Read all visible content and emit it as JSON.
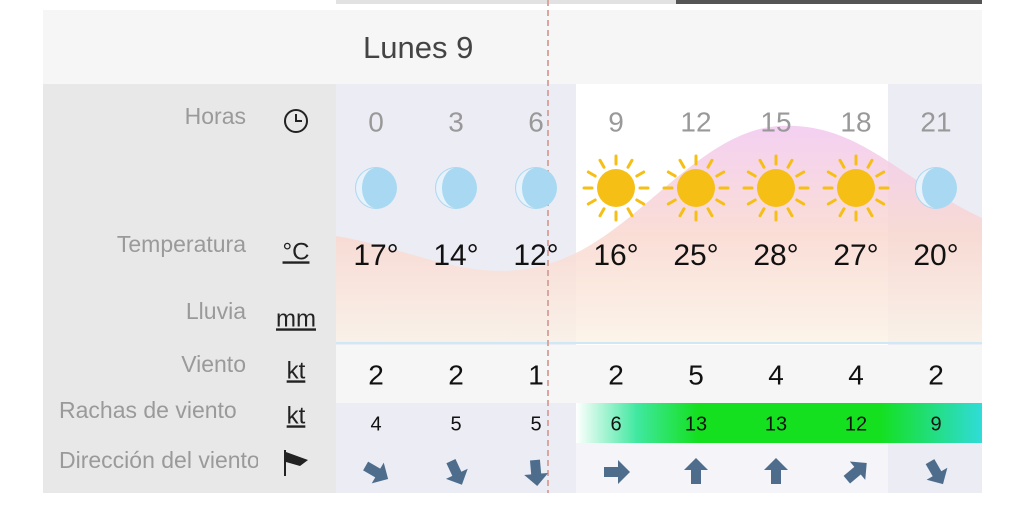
{
  "day_title": "Lunes 9",
  "rows": {
    "hours": {
      "label": "Horas",
      "values": [
        "0",
        "3",
        "6",
        "9",
        "12",
        "15",
        "18",
        "21"
      ]
    },
    "temperature": {
      "label": "Temperatura",
      "unit": "°C",
      "values": [
        "17°",
        "14°",
        "12°",
        "16°",
        "25°",
        "28°",
        "27°",
        "20°"
      ]
    },
    "rain": {
      "label": "Lluvia",
      "unit": "mm"
    },
    "wind": {
      "label": "Viento",
      "unit": "kt",
      "values": [
        "2",
        "2",
        "1",
        "2",
        "5",
        "4",
        "4",
        "2"
      ]
    },
    "gusts": {
      "label": "Rachas de viento",
      "unit": "kt",
      "values": [
        "4",
        "5",
        "5",
        "6",
        "13",
        "13",
        "12",
        "9"
      ]
    },
    "direction": {
      "label": "Dirección del viento",
      "degrees": [
        30,
        65,
        85,
        0,
        -90,
        -90,
        -40,
        60
      ]
    }
  }
}
